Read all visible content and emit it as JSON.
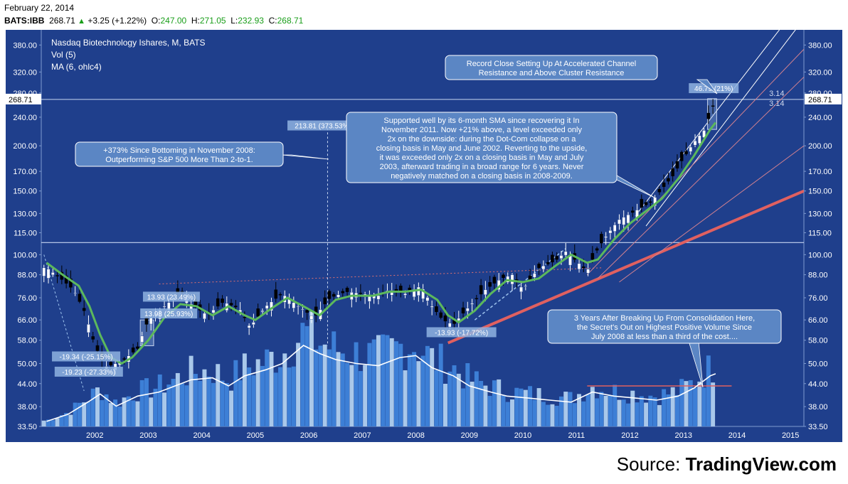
{
  "header": {
    "date": "February 22, 2014",
    "symbol": "BATS:IBB",
    "last": "268.71",
    "change": "+3.25 (+1.22%)",
    "open_label": "O:",
    "open": "247.00",
    "high_label": "H:",
    "high": "271.05",
    "low_label": "L:",
    "low": "232.93",
    "close_label": "C:",
    "close": "268.71"
  },
  "legend": {
    "title": "Nasdaq Biotechnology Ishares, M, BATS",
    "vol": "Vol (5)",
    "ma": "MA (6, ohlc4)"
  },
  "source": {
    "prefix": "Source: ",
    "brand": "TradingView.com"
  },
  "colors": {
    "background": "#1f3f8c",
    "up_candle": "#ffffff",
    "down_candle": "#000000",
    "ma_line": "#5cb85c",
    "trendline": "#e06060",
    "channel": "#ffffff",
    "volume_dark": "#3d7fd6",
    "volume_light": "#a9c8ea",
    "callout_fill": "#5b86c4"
  },
  "chart_data": {
    "type": "candlestick",
    "scale": "log",
    "ylim": [
      33.5,
      400
    ],
    "y_ticks": [
      "33.50",
      "38.00",
      "44.00",
      "50.00",
      "58.00",
      "66.00",
      "76.00",
      "88.00",
      "100.00",
      "115.00",
      "130.00",
      "150.00",
      "170.00",
      "200.00",
      "240.00",
      "280.00",
      "320.00",
      "380.00"
    ],
    "x_ticks": [
      "2002",
      "2003",
      "2004",
      "2005",
      "2006",
      "2007",
      "2008",
      "2009",
      "2010",
      "2011",
      "2012",
      "2013",
      "2014",
      "2015"
    ],
    "last_price_tag": "268.71",
    "price_path": [
      {
        "x": 2001.6,
        "c": 92
      },
      {
        "x": 2001.9,
        "c": 85
      },
      {
        "x": 2002.1,
        "c": 80
      },
      {
        "x": 2002.3,
        "c": 70
      },
      {
        "x": 2002.5,
        "c": 56
      },
      {
        "x": 2002.7,
        "c": 49
      },
      {
        "x": 2002.9,
        "c": 50
      },
      {
        "x": 2003.1,
        "c": 52
      },
      {
        "x": 2003.3,
        "c": 55
      },
      {
        "x": 2003.5,
        "c": 66
      },
      {
        "x": 2003.7,
        "c": 70
      },
      {
        "x": 2003.9,
        "c": 74
      },
      {
        "x": 2004.1,
        "c": 80
      },
      {
        "x": 2004.3,
        "c": 73
      },
      {
        "x": 2004.6,
        "c": 68
      },
      {
        "x": 2004.9,
        "c": 74
      },
      {
        "x": 2005.2,
        "c": 71
      },
      {
        "x": 2005.4,
        "c": 63
      },
      {
        "x": 2005.7,
        "c": 72
      },
      {
        "x": 2006.0,
        "c": 78
      },
      {
        "x": 2006.3,
        "c": 72
      },
      {
        "x": 2006.6,
        "c": 67
      },
      {
        "x": 2006.9,
        "c": 76
      },
      {
        "x": 2007.2,
        "c": 79
      },
      {
        "x": 2007.5,
        "c": 78
      },
      {
        "x": 2007.8,
        "c": 77
      },
      {
        "x": 2008.0,
        "c": 80
      },
      {
        "x": 2008.3,
        "c": 78
      },
      {
        "x": 2008.6,
        "c": 82
      },
      {
        "x": 2008.8,
        "c": 72
      },
      {
        "x": 2009.0,
        "c": 66
      },
      {
        "x": 2009.2,
        "c": 64
      },
      {
        "x": 2009.5,
        "c": 72
      },
      {
        "x": 2009.8,
        "c": 80
      },
      {
        "x": 2010.1,
        "c": 86
      },
      {
        "x": 2010.3,
        "c": 88
      },
      {
        "x": 2010.5,
        "c": 80
      },
      {
        "x": 2010.8,
        "c": 92
      },
      {
        "x": 2011.1,
        "c": 96
      },
      {
        "x": 2011.3,
        "c": 102
      },
      {
        "x": 2011.5,
        "c": 96
      },
      {
        "x": 2011.7,
        "c": 90
      },
      {
        "x": 2011.9,
        "c": 104
      },
      {
        "x": 2012.1,
        "c": 115
      },
      {
        "x": 2012.3,
        "c": 125
      },
      {
        "x": 2012.6,
        "c": 132
      },
      {
        "x": 2012.9,
        "c": 140
      },
      {
        "x": 2013.1,
        "c": 152
      },
      {
        "x": 2013.3,
        "c": 165
      },
      {
        "x": 2013.5,
        "c": 185
      },
      {
        "x": 2013.7,
        "c": 205
      },
      {
        "x": 2013.9,
        "c": 222
      },
      {
        "x": 2014.1,
        "c": 268.71
      }
    ],
    "ma_path": [
      {
        "x": 2001.6,
        "v": 95
      },
      {
        "x": 2001.9,
        "v": 88
      },
      {
        "x": 2002.2,
        "v": 82
      },
      {
        "x": 2002.4,
        "v": 72
      },
      {
        "x": 2002.6,
        "v": 60
      },
      {
        "x": 2002.8,
        "v": 52
      },
      {
        "x": 2003.0,
        "v": 50
      },
      {
        "x": 2003.2,
        "v": 52
      },
      {
        "x": 2003.5,
        "v": 58
      },
      {
        "x": 2003.8,
        "v": 67
      },
      {
        "x": 2004.1,
        "v": 73
      },
      {
        "x": 2004.4,
        "v": 72
      },
      {
        "x": 2004.7,
        "v": 68
      },
      {
        "x": 2005.0,
        "v": 72
      },
      {
        "x": 2005.3,
        "v": 68
      },
      {
        "x": 2005.5,
        "v": 66
      },
      {
        "x": 2005.8,
        "v": 71
      },
      {
        "x": 2006.1,
        "v": 76
      },
      {
        "x": 2006.4,
        "v": 72
      },
      {
        "x": 2006.7,
        "v": 68
      },
      {
        "x": 2007.0,
        "v": 75
      },
      {
        "x": 2007.3,
        "v": 77
      },
      {
        "x": 2007.7,
        "v": 77
      },
      {
        "x": 2008.0,
        "v": 79
      },
      {
        "x": 2008.3,
        "v": 79
      },
      {
        "x": 2008.6,
        "v": 80
      },
      {
        "x": 2008.9,
        "v": 75
      },
      {
        "x": 2009.1,
        "v": 68
      },
      {
        "x": 2009.3,
        "v": 65
      },
      {
        "x": 2009.6,
        "v": 70
      },
      {
        "x": 2009.9,
        "v": 78
      },
      {
        "x": 2010.2,
        "v": 85
      },
      {
        "x": 2010.5,
        "v": 84
      },
      {
        "x": 2010.8,
        "v": 86
      },
      {
        "x": 2011.1,
        "v": 93
      },
      {
        "x": 2011.4,
        "v": 100
      },
      {
        "x": 2011.7,
        "v": 95
      },
      {
        "x": 2011.9,
        "v": 97
      },
      {
        "x": 2012.2,
        "v": 110
      },
      {
        "x": 2012.5,
        "v": 122
      },
      {
        "x": 2012.8,
        "v": 132
      },
      {
        "x": 2013.1,
        "v": 143
      },
      {
        "x": 2013.4,
        "v": 162
      },
      {
        "x": 2013.7,
        "v": 188
      },
      {
        "x": 2014.0,
        "v": 222
      },
      {
        "x": 2014.1,
        "v": 232
      }
    ],
    "volume_line": [
      {
        "x": 2001.6,
        "v": 0.05
      },
      {
        "x": 2002.0,
        "v": 0.12
      },
      {
        "x": 2002.4,
        "v": 0.25
      },
      {
        "x": 2002.6,
        "v": 0.32
      },
      {
        "x": 2002.9,
        "v": 0.2
      },
      {
        "x": 2003.3,
        "v": 0.3
      },
      {
        "x": 2003.7,
        "v": 0.34
      },
      {
        "x": 2004.0,
        "v": 0.4
      },
      {
        "x": 2004.3,
        "v": 0.46
      },
      {
        "x": 2004.7,
        "v": 0.48
      },
      {
        "x": 2005.0,
        "v": 0.4
      },
      {
        "x": 2005.3,
        "v": 0.5
      },
      {
        "x": 2005.7,
        "v": 0.56
      },
      {
        "x": 2006.0,
        "v": 0.62
      },
      {
        "x": 2006.4,
        "v": 0.8
      },
      {
        "x": 2006.7,
        "v": 0.72
      },
      {
        "x": 2007.0,
        "v": 0.66
      },
      {
        "x": 2007.4,
        "v": 0.62
      },
      {
        "x": 2007.8,
        "v": 0.6
      },
      {
        "x": 2008.2,
        "v": 0.68
      },
      {
        "x": 2008.5,
        "v": 0.7
      },
      {
        "x": 2008.8,
        "v": 0.58
      },
      {
        "x": 2009.2,
        "v": 0.5
      },
      {
        "x": 2009.5,
        "v": 0.4
      },
      {
        "x": 2009.9,
        "v": 0.34
      },
      {
        "x": 2010.2,
        "v": 0.3
      },
      {
        "x": 2010.6,
        "v": 0.28
      },
      {
        "x": 2011.0,
        "v": 0.26
      },
      {
        "x": 2011.4,
        "v": 0.24
      },
      {
        "x": 2011.8,
        "v": 0.34
      },
      {
        "x": 2012.2,
        "v": 0.3
      },
      {
        "x": 2012.6,
        "v": 0.28
      },
      {
        "x": 2013.0,
        "v": 0.26
      },
      {
        "x": 2013.4,
        "v": 0.3
      },
      {
        "x": 2013.7,
        "v": 0.38
      },
      {
        "x": 2014.0,
        "v": 0.5
      },
      {
        "x": 2014.1,
        "v": 0.52
      }
    ],
    "resistance_level": 108,
    "annotations": {
      "a1": "213.81 (373.53%)",
      "a2": "13.93 (23.49%)",
      "a3": "13.98 (25.93%)",
      "a4": "-19.34 (-25.15%)",
      "a5": "-19.23 (-27.33%)",
      "a6": "-13.93 (-17.72%)",
      "a7": "46.79 (21%)",
      "a8": "3.14",
      "a9": "3.14"
    },
    "callouts": {
      "c1": [
        "+373% Since Bottoming in November 2008:",
        "Outperforming S&P 500 More Than 2-to-1."
      ],
      "c2": [
        "Supported well by its 6-month SMA since recovering it In",
        "November 2011. Now +21% above, a level exceeded only",
        "2x on the downside: during the Dot-Com collapse on a",
        "closing basis in May and June 2002. Reverting to the upside,",
        "it was exceeded only 2x on a closing basis in May and July",
        "2003, afterward trading in a broad range for 6 years. Never",
        "negatively matched on a closing basis in 2008-2009."
      ],
      "c3": [
        "Record Close Setting Up At Accelerated Channel",
        "Resistance and Above Cluster Resistance"
      ],
      "c4": [
        "3 Years After Breaking Up From Consolidation Here,",
        "the Secret's Out on Highest Positive Volume Since",
        "July 2008 at less than a third of the cost...."
      ]
    }
  }
}
